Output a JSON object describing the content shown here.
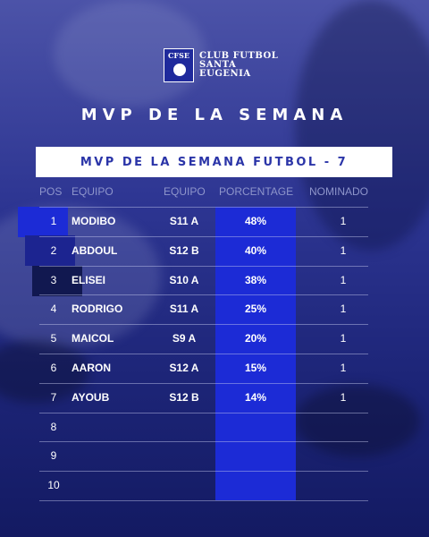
{
  "club": {
    "line1": "CLUB FUTBOL",
    "line2": "SANTA",
    "line3": "EUGENIA",
    "crest_letters": "CFSE"
  },
  "title": "MVP DE LA SEMANA",
  "banner": "MVP DE LA SEMANA FUTBOL - 7",
  "columns": {
    "pos": "POS",
    "player": "EQUIPO",
    "team": "EQUIPO",
    "percent": "PORCENTAGE",
    "nominated": "NOMINADO"
  },
  "colors": {
    "accent_blue": "#1c2bd6",
    "background": "#2d3592",
    "banner_text": "#2b35a8"
  },
  "rows": [
    {
      "pos": "1",
      "name": "MODIBO",
      "team": "S11 A",
      "pct": "48%",
      "nom": "1"
    },
    {
      "pos": "2",
      "name": "ABDOUL",
      "team": "S12 B",
      "pct": "40%",
      "nom": "1"
    },
    {
      "pos": "3",
      "name": "ELISEI",
      "team": "S10 A",
      "pct": "38%",
      "nom": "1"
    },
    {
      "pos": "4",
      "name": "RODRIGO",
      "team": "S11 A",
      "pct": "25%",
      "nom": "1"
    },
    {
      "pos": "5",
      "name": "MAICOL",
      "team": "S9 A",
      "pct": "20%",
      "nom": "1"
    },
    {
      "pos": "6",
      "name": "AARON",
      "team": "S12 A",
      "pct": "15%",
      "nom": "1"
    },
    {
      "pos": "7",
      "name": "AYOUB",
      "team": "S12 B",
      "pct": "14%",
      "nom": "1"
    },
    {
      "pos": "8",
      "name": "",
      "team": "",
      "pct": "",
      "nom": ""
    },
    {
      "pos": "9",
      "name": "",
      "team": "",
      "pct": "",
      "nom": ""
    },
    {
      "pos": "10",
      "name": "",
      "team": "",
      "pct": "",
      "nom": ""
    }
  ]
}
